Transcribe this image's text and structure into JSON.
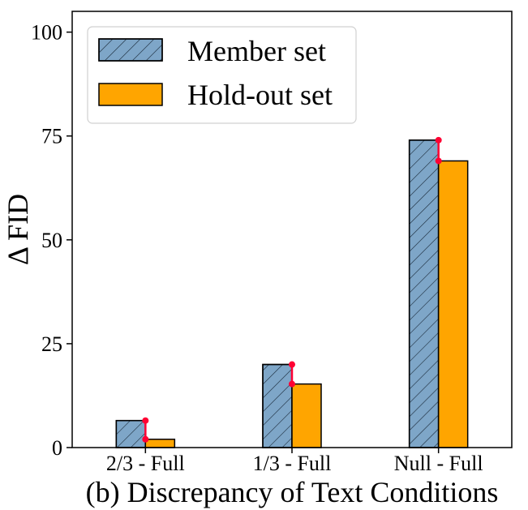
{
  "chart_data": {
    "type": "bar",
    "title": "",
    "xlabel": "(b) Discrepancy of Text Conditions",
    "ylabel": "Δ FID",
    "categories": [
      "2/3 - Full",
      "1/3 - Full",
      "Null - Full"
    ],
    "series": [
      {
        "name": "Member set",
        "values": [
          6.5,
          20,
          74
        ],
        "color": "#7ea6c8",
        "hatch": true
      },
      {
        "name": "Hold-out set",
        "values": [
          2,
          15.3,
          69
        ],
        "color": "#ffa500",
        "hatch": false
      }
    ],
    "ylim": [
      0,
      105
    ],
    "yticks": [
      0,
      25,
      50,
      75,
      100
    ],
    "grid": false,
    "legend_position": "top-left",
    "gap_marker_color": "#ff0033"
  }
}
